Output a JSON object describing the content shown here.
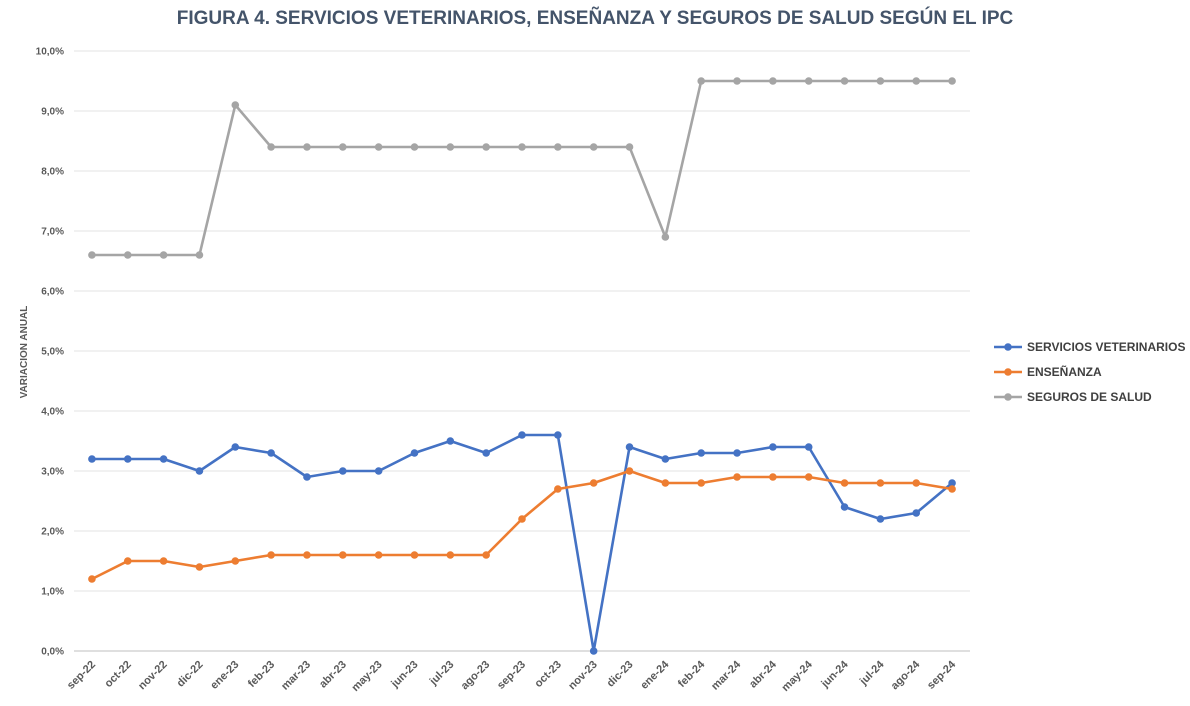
{
  "chart_data": {
    "type": "line",
    "title": "FIGURA 4. SERVICIOS VETERINARIOS, ENSEÑANZA Y SEGUROS DE SALUD SEGÚN EL IPC",
    "xlabel": "",
    "ylabel": "VARIACION ANUAL",
    "ylim": [
      0,
      10
    ],
    "y_ticks": [
      "0,0%",
      "1,0%",
      "2,0%",
      "3,0%",
      "4,0%",
      "5,0%",
      "6,0%",
      "7,0%",
      "8,0%",
      "9,0%",
      "10,0%"
    ],
    "categories": [
      "sep-22",
      "oct-22",
      "nov-22",
      "dic-22",
      "ene-23",
      "feb-23",
      "mar-23",
      "abr-23",
      "may-23",
      "jun-23",
      "jul-23",
      "ago-23",
      "sep-23",
      "oct-23",
      "nov-23",
      "dic-23",
      "ene-24",
      "feb-24",
      "mar-24",
      "abr-24",
      "may-24",
      "jun-24",
      "jul-24",
      "ago-24",
      "sep-24"
    ],
    "grid": true,
    "legend_position": "right",
    "series": [
      {
        "name": "SERVICIOS VETERINARIOS",
        "color": "#4472c4",
        "values": [
          3.2,
          3.2,
          3.2,
          3.0,
          3.4,
          3.3,
          2.9,
          3.0,
          3.0,
          3.3,
          3.5,
          3.3,
          3.6,
          3.6,
          0.0,
          3.4,
          3.2,
          3.3,
          3.3,
          3.4,
          3.4,
          2.4,
          2.2,
          2.3,
          2.8
        ]
      },
      {
        "name": "ENSEÑANZA",
        "color": "#ed7d31",
        "values": [
          1.2,
          1.5,
          1.5,
          1.4,
          1.5,
          1.6,
          1.6,
          1.6,
          1.6,
          1.6,
          1.6,
          1.6,
          2.2,
          2.7,
          2.8,
          3.0,
          2.8,
          2.8,
          2.9,
          2.9,
          2.9,
          2.8,
          2.8,
          2.8,
          2.7
        ]
      },
      {
        "name": "SEGUROS DE SALUD",
        "color": "#a5a5a5",
        "values": [
          6.6,
          6.6,
          6.6,
          6.6,
          9.1,
          8.4,
          8.4,
          8.4,
          8.4,
          8.4,
          8.4,
          8.4,
          8.4,
          8.4,
          8.4,
          8.4,
          6.9,
          9.5,
          9.5,
          9.5,
          9.5,
          9.5,
          9.5,
          9.5,
          9.5
        ]
      }
    ]
  }
}
